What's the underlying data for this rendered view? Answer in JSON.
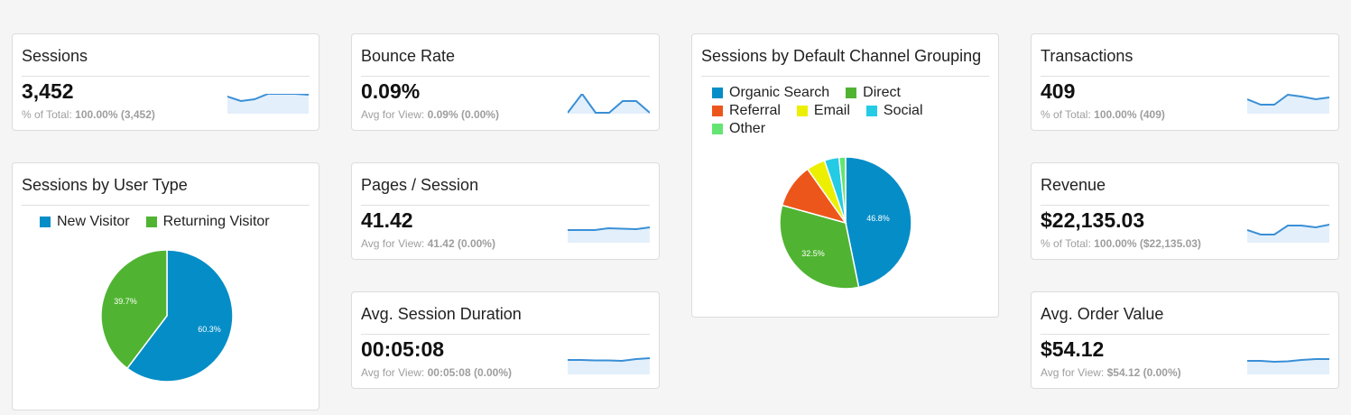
{
  "colors": {
    "sparkline": "#3a8fd6",
    "sparkline_fill": "#e3f0fb",
    "organic_search": "#058dc7",
    "direct": "#50b432",
    "referral": "#ed561b",
    "email": "#edef00",
    "social": "#24cbe5",
    "other": "#64e572"
  },
  "sessions": {
    "title": "Sessions",
    "value": "3,452",
    "sub_label": "% of Total: ",
    "sub_value": "100.00% (3,452)"
  },
  "bounce_rate": {
    "title": "Bounce Rate",
    "value": "0.09%",
    "sub_label": "Avg for View: ",
    "sub_value": "0.09% (0.00%)"
  },
  "pages_per_session": {
    "title": "Pages / Session",
    "value": "41.42",
    "sub_label": "Avg for View: ",
    "sub_value": "41.42 (0.00%)"
  },
  "avg_session_duration": {
    "title": "Avg. Session Duration",
    "value": "00:05:08",
    "sub_label": "Avg for View: ",
    "sub_value": "00:05:08 (0.00%)"
  },
  "transactions": {
    "title": "Transactions",
    "value": "409",
    "sub_label": "% of Total: ",
    "sub_value": "100.00% (409)"
  },
  "revenue": {
    "title": "Revenue",
    "value": "$22,135.03",
    "sub_label": "% of Total: ",
    "sub_value": "100.00% ($22,135.03)"
  },
  "avg_order_value": {
    "title": "Avg. Order Value",
    "value": "$54.12",
    "sub_label": "Avg for View: ",
    "sub_value": "$54.12 (0.00%)"
  },
  "user_type": {
    "title": "Sessions by User Type",
    "legend": [
      "New Visitor",
      "Returning Visitor"
    ],
    "labels": [
      "60.3%",
      "39.7%"
    ]
  },
  "channel_grouping": {
    "title": "Sessions by Default Channel Grouping",
    "legend": [
      "Organic Search",
      "Direct",
      "Referral",
      "Email",
      "Social",
      "Other"
    ],
    "labels": [
      "46.8%",
      "32.5%"
    ]
  },
  "chart_data": [
    {
      "type": "pie",
      "title": "Sessions by User Type",
      "categories": [
        "New Visitor",
        "Returning Visitor"
      ],
      "values": [
        60.3,
        39.7
      ],
      "colors": [
        "#058dc7",
        "#50b432"
      ],
      "legend_position": "top"
    },
    {
      "type": "pie",
      "title": "Sessions by Default Channel Grouping",
      "categories": [
        "Organic Search",
        "Direct",
        "Referral",
        "Email",
        "Social",
        "Other"
      ],
      "values": [
        46.8,
        32.5,
        10.9,
        4.6,
        3.6,
        1.6
      ],
      "colors": [
        "#058dc7",
        "#50b432",
        "#ed561b",
        "#edef00",
        "#24cbe5",
        "#64e572"
      ],
      "legend_position": "top"
    },
    {
      "type": "area",
      "title": "Sessions sparkline",
      "values": [
        0.7,
        0.2,
        0.4,
        1.0,
        1.0,
        1.0,
        0.9
      ]
    },
    {
      "type": "area",
      "title": "Bounce Rate sparkline",
      "values": [
        0.0,
        1.0,
        0.0,
        0.0,
        0.62,
        0.62,
        0.0
      ]
    },
    {
      "type": "area",
      "title": "Pages / Session sparkline",
      "values": [
        0.3,
        0.3,
        0.35,
        0.8,
        0.7,
        0.6,
        1.0
      ]
    },
    {
      "type": "area",
      "title": "Avg. Session Duration sparkline",
      "values": [
        0.7,
        0.6,
        0.55,
        0.5,
        0.3,
        0.7,
        1.0
      ]
    },
    {
      "type": "area",
      "title": "Transactions sparkline",
      "values": [
        0.55,
        0.0,
        0.0,
        1.0,
        0.8,
        0.55,
        0.73
      ]
    },
    {
      "type": "area",
      "title": "Revenue sparkline",
      "values": [
        0.5,
        0.0,
        0.0,
        0.92,
        0.92,
        0.75,
        1.0
      ]
    },
    {
      "type": "area",
      "title": "Avg. Order Value sparkline",
      "values": [
        0.6,
        0.6,
        0.4,
        0.5,
        0.75,
        1.0,
        1.0
      ]
    }
  ]
}
